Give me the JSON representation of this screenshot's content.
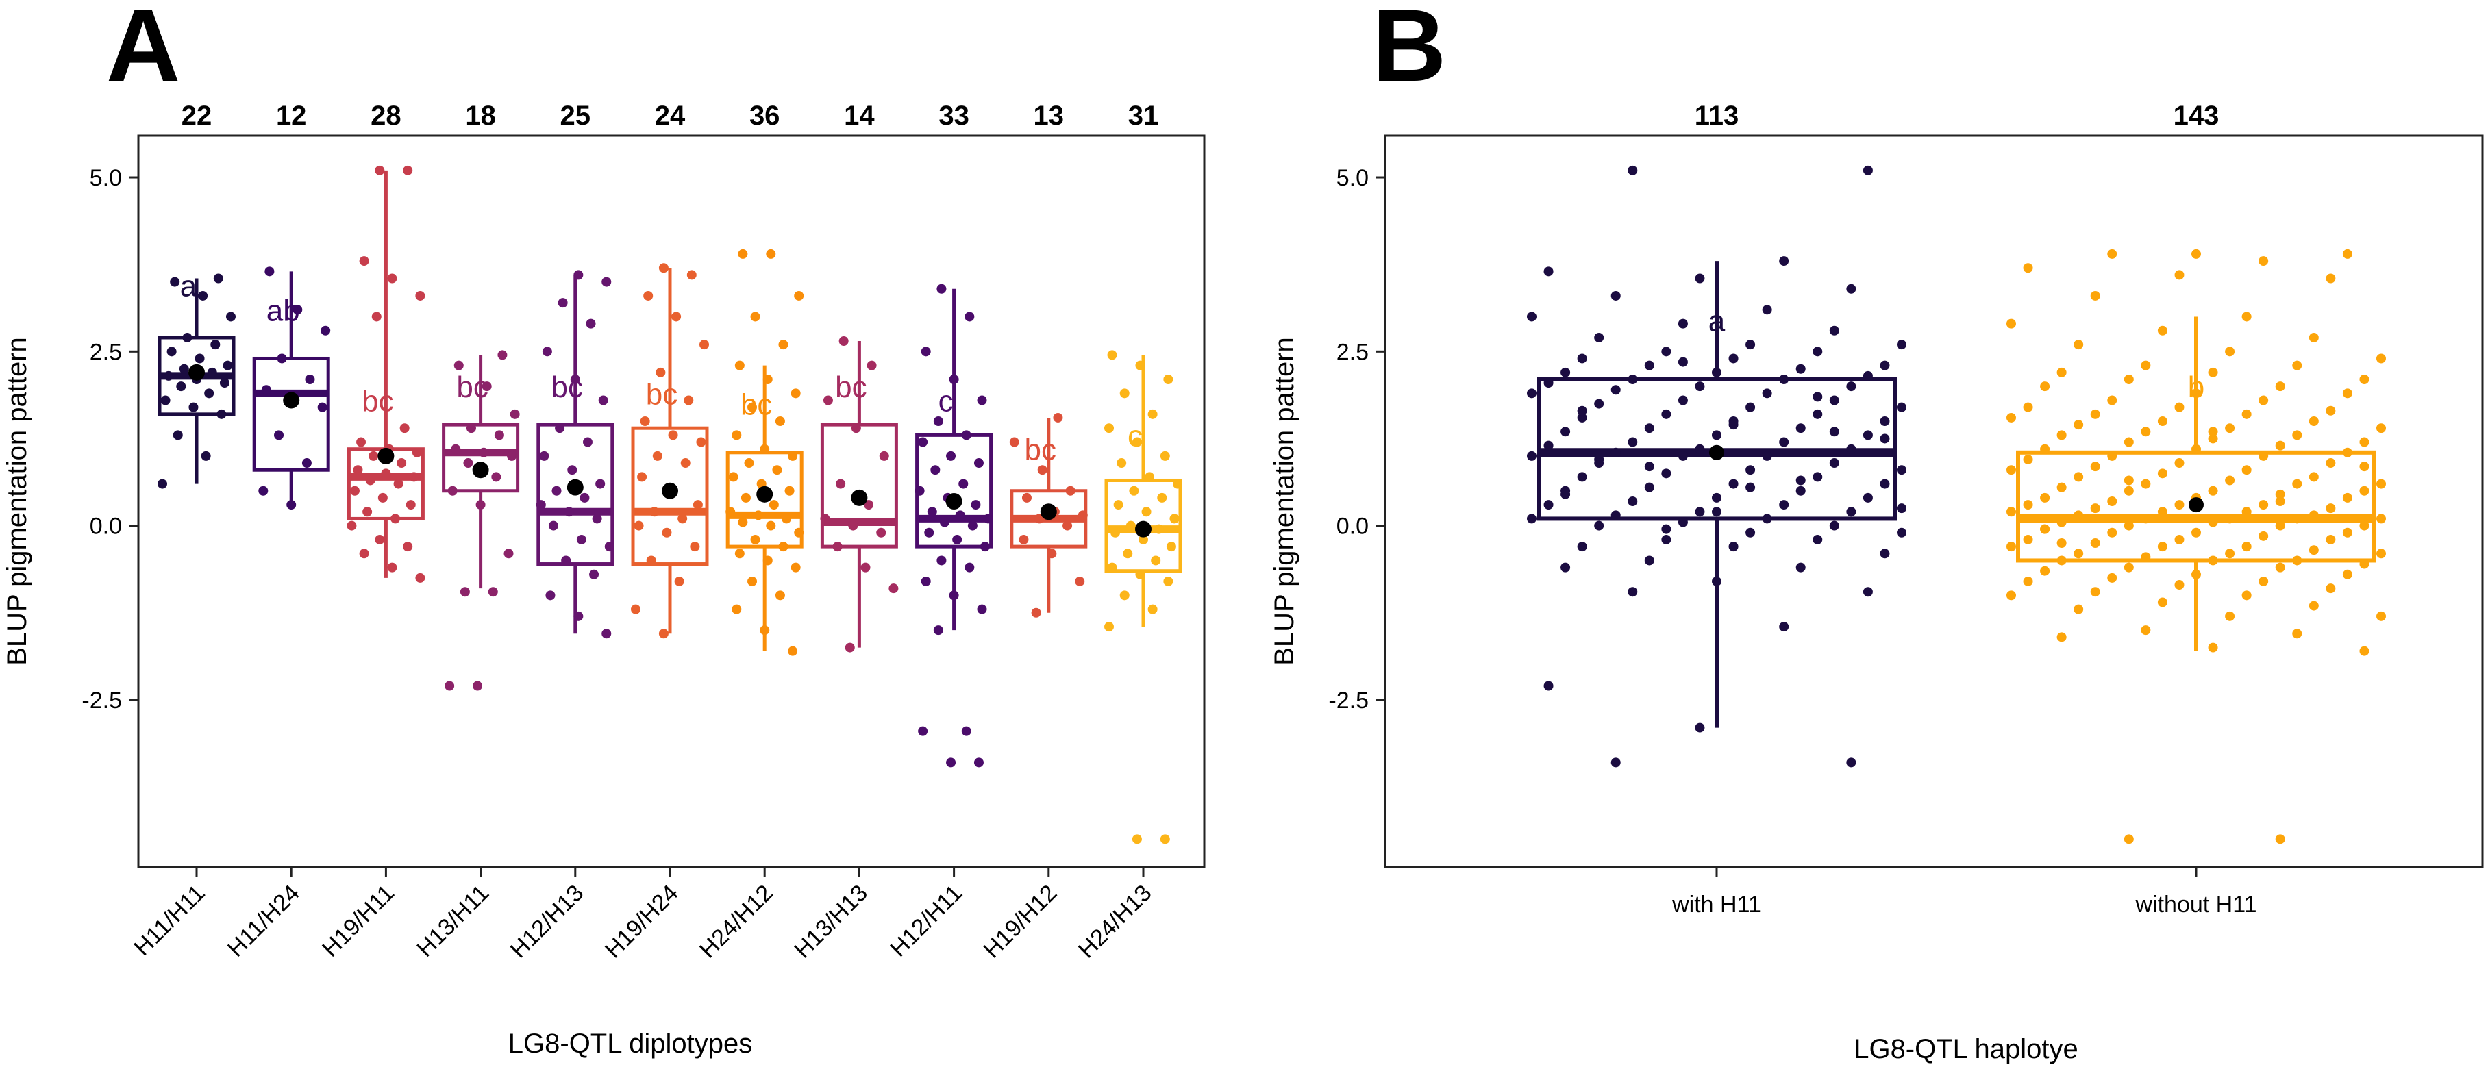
{
  "chart_data": [
    {
      "type": "box",
      "panel_label": "A",
      "xlabel": "LG8-QTL diplotypes",
      "ylabel": "BLUP pigmentation pattern",
      "ylim": [
        -4.9,
        5.6
      ],
      "yticks": [
        5.0,
        2.5,
        0.0,
        -2.5
      ],
      "ytick_labels": [
        "5.0",
        "2.5",
        "0.0",
        "-2.5"
      ],
      "groups": [
        {
          "label": "H11/H11",
          "n": "22",
          "letter": "a",
          "color": "#1b0c41",
          "q1": 1.6,
          "median": 2.15,
          "q3": 2.7,
          "whisker_low": 0.6,
          "whisker_high": 3.55,
          "mean": 2.2,
          "letter_y": 3.45,
          "points": [
            0.6,
            1.0,
            1.3,
            1.6,
            1.7,
            1.8,
            1.9,
            2.0,
            2.05,
            2.1,
            2.15,
            2.2,
            2.25,
            2.3,
            2.4,
            2.5,
            2.6,
            2.7,
            3.0,
            3.3,
            3.5,
            3.55
          ]
        },
        {
          "label": "H11/H24",
          "n": "12",
          "letter": "ab",
          "color": "#3a0963",
          "q1": 0.8,
          "median": 1.9,
          "q3": 2.4,
          "whisker_low": 0.3,
          "whisker_high": 3.65,
          "mean": 1.8,
          "letter_y": 3.1,
          "points": [
            0.3,
            0.5,
            0.9,
            1.3,
            1.7,
            1.85,
            1.95,
            2.1,
            2.4,
            2.8,
            3.1,
            3.65
          ]
        },
        {
          "label": "H19/H11",
          "n": "28",
          "letter": "bc",
          "color": "#c73e4c",
          "q1": 0.1,
          "median": 0.7,
          "q3": 1.1,
          "whisker_low": -0.75,
          "whisker_high": 5.1,
          "mean": 1.0,
          "letter_y": 1.8,
          "points": [
            -0.75,
            -0.6,
            -0.4,
            -0.3,
            -0.2,
            0.0,
            0.1,
            0.2,
            0.3,
            0.4,
            0.5,
            0.6,
            0.65,
            0.7,
            0.75,
            0.8,
            0.9,
            1.0,
            1.05,
            1.1,
            1.2,
            1.4,
            3.0,
            3.3,
            3.55,
            3.8,
            5.1,
            5.1
          ]
        },
        {
          "label": "H13/H11",
          "n": "18",
          "letter": "bc",
          "color": "#8c2369",
          "q1": 0.5,
          "median": 1.05,
          "q3": 1.45,
          "whisker_low": -0.9,
          "whisker_high": 2.45,
          "mean": 0.8,
          "letter_y": 2.0,
          "points": [
            -2.3,
            -2.3,
            -0.95,
            -0.95,
            -0.4,
            0.3,
            0.5,
            0.7,
            0.9,
            1.0,
            1.05,
            1.1,
            1.3,
            1.4,
            1.6,
            2.0,
            2.3,
            2.45
          ]
        },
        {
          "label": "H12/H13",
          "n": "25",
          "letter": "bc",
          "color": "#65156e",
          "q1": -0.55,
          "median": 0.2,
          "q3": 1.45,
          "whisker_low": -1.55,
          "whisker_high": 3.6,
          "mean": 0.55,
          "letter_y": 2.0,
          "points": [
            -1.55,
            -1.3,
            -1.0,
            -0.7,
            -0.5,
            -0.3,
            -0.2,
            0.0,
            0.1,
            0.2,
            0.3,
            0.4,
            0.5,
            0.6,
            0.8,
            1.0,
            1.2,
            1.4,
            1.8,
            2.1,
            2.5,
            2.9,
            3.2,
            3.5,
            3.6
          ]
        },
        {
          "label": "H19/H24",
          "n": "24",
          "letter": "bc",
          "color": "#e8602e",
          "q1": -0.55,
          "median": 0.2,
          "q3": 1.4,
          "whisker_low": -1.55,
          "whisker_high": 3.7,
          "mean": 0.5,
          "letter_y": 1.9,
          "points": [
            -1.55,
            -1.2,
            -0.8,
            -0.5,
            -0.3,
            -0.1,
            0.0,
            0.1,
            0.2,
            0.3,
            0.5,
            0.7,
            0.9,
            1.0,
            1.2,
            1.3,
            1.5,
            1.8,
            2.2,
            2.6,
            3.0,
            3.3,
            3.6,
            3.7
          ]
        },
        {
          "label": "H24/H12",
          "n": "36",
          "letter": "bc",
          "color": "#f98e09",
          "q1": -0.3,
          "median": 0.15,
          "q3": 1.05,
          "whisker_low": -1.8,
          "whisker_high": 2.3,
          "mean": 0.45,
          "letter_y": 1.75,
          "points": [
            -1.8,
            -1.5,
            -1.2,
            -1.0,
            -0.8,
            -0.6,
            -0.5,
            -0.4,
            -0.3,
            -0.2,
            -0.1,
            0.0,
            0.05,
            0.1,
            0.15,
            0.2,
            0.3,
            0.4,
            0.5,
            0.6,
            0.7,
            0.8,
            0.9,
            1.0,
            1.1,
            1.3,
            1.5,
            1.7,
            1.9,
            2.1,
            2.3,
            2.6,
            3.0,
            3.3,
            3.9,
            3.9
          ]
        },
        {
          "label": "H13/H13",
          "n": "14",
          "letter": "bc",
          "color": "#a52c60",
          "q1": -0.3,
          "median": 0.05,
          "q3": 1.45,
          "whisker_low": -1.75,
          "whisker_high": 2.65,
          "mean": 0.4,
          "letter_y": 2.0,
          "points": [
            -1.75,
            -0.9,
            -0.6,
            -0.3,
            -0.1,
            0.0,
            0.1,
            0.3,
            0.6,
            1.0,
            1.4,
            1.8,
            2.3,
            2.65
          ]
        },
        {
          "label": "H12/H11",
          "n": "33",
          "letter": "c",
          "color": "#4b0c6b",
          "q1": -0.3,
          "median": 0.1,
          "q3": 1.3,
          "whisker_low": -1.5,
          "whisker_high": 3.4,
          "mean": 0.35,
          "letter_y": 1.8,
          "points": [
            -3.4,
            -3.4,
            -2.95,
            -2.95,
            -1.5,
            -1.2,
            -1.0,
            -0.8,
            -0.6,
            -0.5,
            -0.3,
            -0.2,
            -0.1,
            0.0,
            0.05,
            0.1,
            0.15,
            0.2,
            0.3,
            0.4,
            0.5,
            0.6,
            0.8,
            0.9,
            1.0,
            1.2,
            1.3,
            1.5,
            1.8,
            2.1,
            2.5,
            3.0,
            3.4
          ]
        },
        {
          "label": "H19/H12",
          "n": "13",
          "letter": "bc",
          "color": "#dd513a",
          "q1": -0.3,
          "median": 0.1,
          "q3": 0.5,
          "whisker_low": -1.25,
          "whisker_high": 1.55,
          "mean": 0.2,
          "letter_y": 1.1,
          "points": [
            -1.25,
            -0.8,
            -0.4,
            -0.2,
            0.0,
            0.1,
            0.15,
            0.2,
            0.4,
            0.5,
            0.8,
            1.2,
            1.55
          ]
        },
        {
          "label": "H24/H13",
          "n": "31",
          "letter": "c",
          "color": "#fcb519",
          "q1": -0.65,
          "median": -0.05,
          "q3": 0.65,
          "whisker_low": -1.45,
          "whisker_high": 2.45,
          "mean": -0.05,
          "letter_y": 1.3,
          "points": [
            -4.5,
            -4.5,
            -1.45,
            -1.2,
            -1.0,
            -0.8,
            -0.7,
            -0.6,
            -0.5,
            -0.4,
            -0.3,
            -0.2,
            -0.1,
            -0.05,
            0.0,
            0.1,
            0.2,
            0.3,
            0.4,
            0.5,
            0.6,
            0.7,
            0.9,
            1.0,
            1.2,
            1.4,
            1.6,
            1.9,
            2.1,
            2.3,
            2.45
          ]
        }
      ]
    },
    {
      "type": "box",
      "panel_label": "B",
      "xlabel": "LG8-QTL haplotye",
      "ylabel": "BLUP pigmentation pattern",
      "ylim": [
        -4.9,
        5.6
      ],
      "yticks": [
        5.0,
        2.5,
        0.0,
        -2.5
      ],
      "ytick_labels": [
        "5.0",
        "2.5",
        "0.0",
        "-2.5"
      ],
      "groups": [
        {
          "label": "with H11",
          "n": "113",
          "letter": "a",
          "color": "#1b0c41",
          "q1": 0.1,
          "median": 1.05,
          "q3": 2.1,
          "whisker_low": -2.9,
          "whisker_high": 3.8,
          "mean": 1.05,
          "letter_y": 2.95,
          "points": [
            -3.4,
            -3.4,
            -2.9,
            -2.3,
            -1.45,
            -0.95,
            -0.95,
            -0.8,
            -0.6,
            -0.6,
            -0.5,
            -0.4,
            -0.3,
            -0.3,
            -0.2,
            -0.2,
            -0.1,
            -0.1,
            0.0,
            0.0,
            0.05,
            0.1,
            0.1,
            0.15,
            0.2,
            0.2,
            0.3,
            0.3,
            0.35,
            0.4,
            0.4,
            0.5,
            0.5,
            0.55,
            0.6,
            0.6,
            0.7,
            0.7,
            0.75,
            0.8,
            0.8,
            0.9,
            0.9,
            1.0,
            1.0,
            1.0,
            1.05,
            1.1,
            1.1,
            1.15,
            1.2,
            1.2,
            1.3,
            1.3,
            1.35,
            1.4,
            1.4,
            1.5,
            1.5,
            1.55,
            1.6,
            1.6,
            1.7,
            1.7,
            1.75,
            1.8,
            1.8,
            1.9,
            1.9,
            1.95,
            2.0,
            2.0,
            2.05,
            2.1,
            2.1,
            2.15,
            2.2,
            2.2,
            2.25,
            2.3,
            2.3,
            2.4,
            2.4,
            2.5,
            2.5,
            2.6,
            2.6,
            2.7,
            2.8,
            2.9,
            3.0,
            3.1,
            3.3,
            3.4,
            3.55,
            3.65,
            3.8,
            5.1,
            5.1,
            0.2,
            0.45,
            0.65,
            0.85,
            1.25,
            1.45,
            1.65,
            1.85,
            -0.05,
            0.25,
            0.55,
            0.95,
            1.35,
            2.35
          ]
        },
        {
          "label": "without H11",
          "n": "143",
          "letter": "b",
          "color": "#fca50a",
          "q1": -0.5,
          "median": 0.1,
          "q3": 1.05,
          "whisker_low": -1.8,
          "whisker_high": 3.0,
          "mean": 0.3,
          "letter_y": 2.0,
          "points": [
            -4.5,
            -4.5,
            -1.8,
            -1.75,
            -1.6,
            -1.55,
            -1.5,
            -1.3,
            -1.3,
            -1.2,
            -1.15,
            -1.1,
            -1.0,
            -1.0,
            -0.95,
            -0.9,
            -0.85,
            -0.8,
            -0.8,
            -0.75,
            -0.7,
            -0.7,
            -0.65,
            -0.6,
            -0.6,
            -0.55,
            -0.5,
            -0.5,
            -0.5,
            -0.45,
            -0.4,
            -0.4,
            -0.4,
            -0.35,
            -0.3,
            -0.3,
            -0.3,
            -0.25,
            -0.2,
            -0.2,
            -0.2,
            -0.15,
            -0.1,
            -0.1,
            -0.1,
            -0.05,
            0.0,
            0.0,
            0.0,
            0.05,
            0.05,
            0.1,
            0.1,
            0.1,
            0.1,
            0.15,
            0.15,
            0.2,
            0.2,
            0.2,
            0.25,
            0.25,
            0.3,
            0.3,
            0.3,
            0.35,
            0.4,
            0.4,
            0.4,
            0.45,
            0.5,
            0.5,
            0.5,
            0.55,
            0.6,
            0.6,
            0.6,
            0.65,
            0.7,
            0.7,
            0.75,
            0.8,
            0.8,
            0.85,
            0.9,
            0.9,
            0.95,
            1.0,
            1.0,
            1.05,
            1.1,
            1.1,
            1.15,
            1.2,
            1.2,
            1.25,
            1.3,
            1.3,
            1.35,
            1.4,
            1.4,
            1.45,
            1.5,
            1.5,
            1.55,
            1.6,
            1.6,
            1.65,
            1.7,
            1.7,
            1.8,
            1.8,
            1.9,
            1.9,
            2.0,
            2.0,
            2.1,
            2.1,
            2.2,
            2.2,
            2.3,
            2.3,
            2.4,
            2.5,
            2.6,
            2.7,
            2.8,
            2.9,
            3.0,
            3.3,
            3.55,
            3.6,
            3.7,
            3.8,
            3.9,
            3.9,
            3.9,
            -0.05,
            0.35,
            0.65,
            0.85,
            1.35,
            -0.25
          ]
        }
      ]
    }
  ]
}
